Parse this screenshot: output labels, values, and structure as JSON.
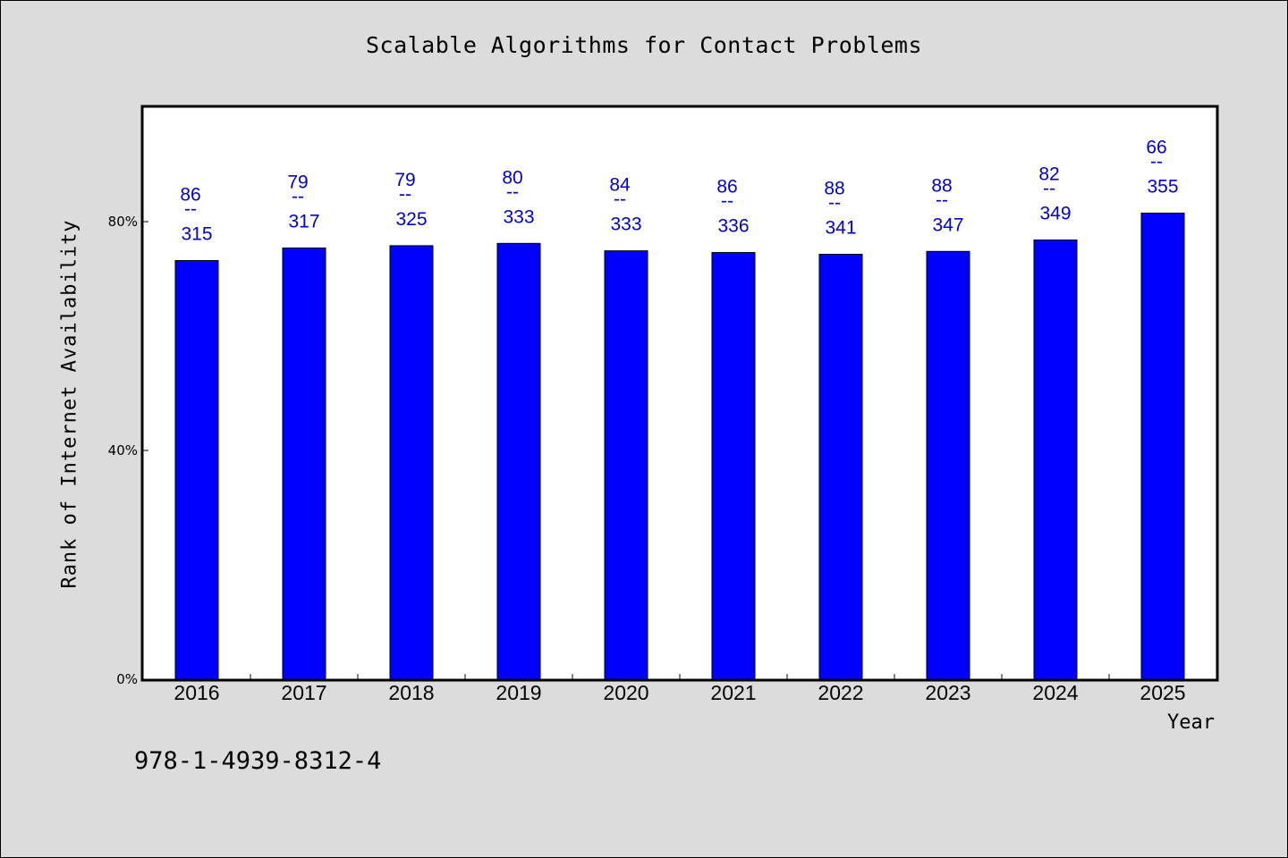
{
  "title": "Scalable Algorithms for Contact Problems",
  "footer_text": "978-1-4939-8312-4",
  "colors": {
    "bar": "#0000ff",
    "label": "#0000cc",
    "background": "#dcdcdc",
    "plot": "#ffffff"
  },
  "chart_data": {
    "type": "bar",
    "title": "Scalable Algorithms for Contact Problems",
    "xlabel": "Year",
    "ylabel": "Rank of Internet Availability",
    "categories": [
      "2016",
      "2017",
      "2018",
      "2019",
      "2020",
      "2021",
      "2022",
      "2023",
      "2024",
      "2025"
    ],
    "values": [
      73.2,
      75.4,
      75.8,
      76.2,
      74.9,
      74.6,
      74.3,
      74.8,
      76.8,
      81.5
    ],
    "value_labels": [
      {
        "top": "86",
        "mid": "--",
        "bottom": "315"
      },
      {
        "top": "79",
        "mid": "--",
        "bottom": "317"
      },
      {
        "top": "79",
        "mid": "--",
        "bottom": "325"
      },
      {
        "top": "80",
        "mid": "--",
        "bottom": "333"
      },
      {
        "top": "84",
        "mid": "--",
        "bottom": "333"
      },
      {
        "top": "86",
        "mid": "--",
        "bottom": "336"
      },
      {
        "top": "88",
        "mid": "--",
        "bottom": "341"
      },
      {
        "top": "88",
        "mid": "--",
        "bottom": "347"
      },
      {
        "top": "82",
        "mid": "--",
        "bottom": "349"
      },
      {
        "top": "66",
        "mid": "--",
        "bottom": "355"
      }
    ],
    "yticks": [
      {
        "value": 0,
        "label": "0%"
      },
      {
        "value": 40,
        "label": "40%"
      },
      {
        "value": 80,
        "label": "80%"
      }
    ],
    "ylim": [
      0,
      100
    ],
    "grid": false,
    "legend": "none"
  }
}
